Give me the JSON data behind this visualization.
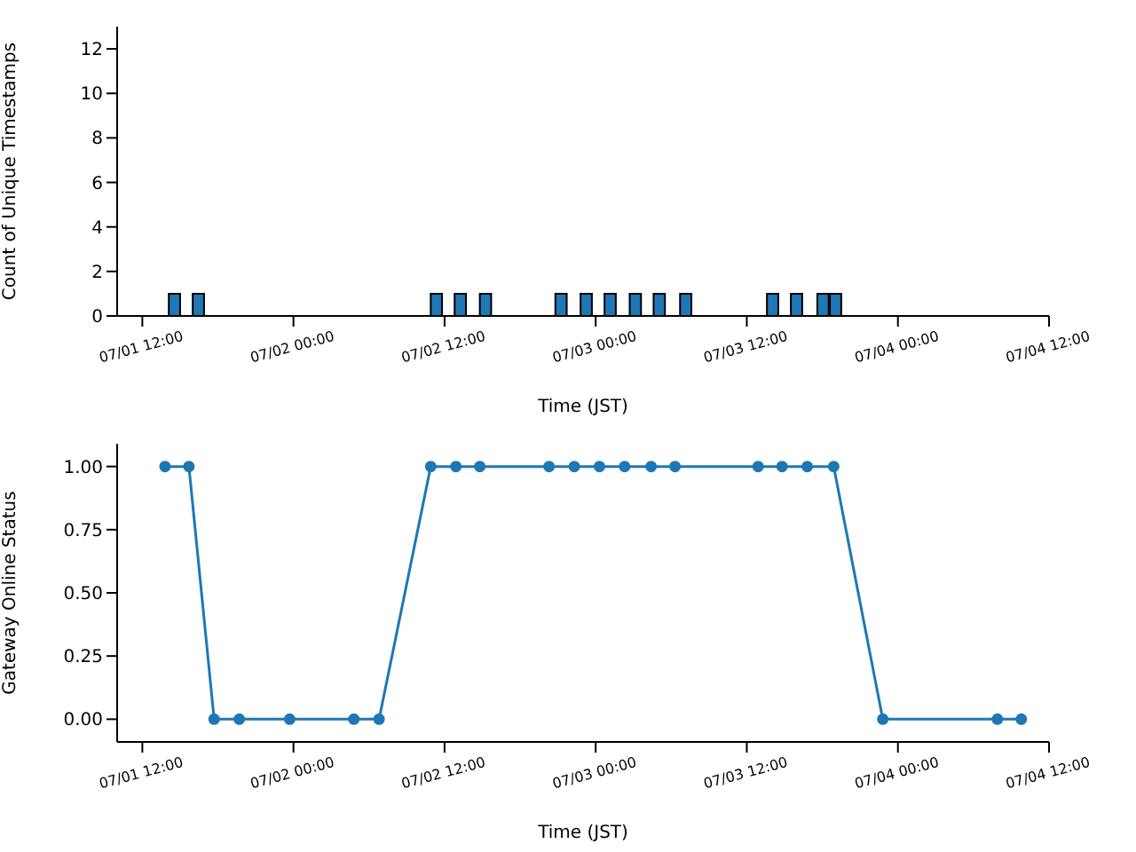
{
  "chart_data": [
    {
      "type": "bar",
      "xlabel": "Time (JST)",
      "ylabel": "Count of Unique Timestamps",
      "color": "#1f77b4",
      "x": [
        "--07-01T14:36",
        "--07-01T16:30",
        "--07-02T11:24",
        "--07-02T13:18",
        "--07-02T15:18",
        "--07-02T21:18",
        "--07-02T23:18",
        "--07-03T01:12",
        "--07-03T03:12",
        "--07-03T05:06",
        "--07-03T07:12",
        "--07-03T14:06",
        "--07-03T16:00",
        "--07-03T18:06",
        "--07-03T19:06"
      ],
      "values": [
        1,
        1,
        1,
        1,
        1,
        1,
        1,
        1,
        1,
        1,
        1,
        1,
        1,
        1,
        1
      ],
      "xlim": [
        "--07-01T10:00",
        "--07-04T12:00"
      ],
      "xticks": [
        {
          "value": "--07-01T12:00",
          "label": "07/01 12:00"
        },
        {
          "value": "--07-02T00:00",
          "label": "07/02 00:00"
        },
        {
          "value": "--07-02T12:00",
          "label": "07/02 12:00"
        },
        {
          "value": "--07-03T00:00",
          "label": "07/03 00:00"
        },
        {
          "value": "--07-03T12:00",
          "label": "07/03 12:00"
        },
        {
          "value": "--07-04T00:00",
          "label": "07/04 00:00"
        },
        {
          "value": "--07-04T12:00",
          "label": "07/04 12:00"
        }
      ],
      "ylim": [
        0,
        13
      ],
      "yticks": [
        0,
        2,
        4,
        6,
        8,
        10,
        12
      ]
    },
    {
      "type": "line",
      "xlabel": "Time (JST)",
      "ylabel": "Gateway Online Status",
      "color": "#1f77b4",
      "marker": "circle",
      "x": [
        "--07-01T13:48",
        "--07-01T15:42",
        "--07-01T17:42",
        "--07-01T19:42",
        "--07-01T23:42",
        "--07-02T04:48",
        "--07-02T06:48",
        "--07-02T10:54",
        "--07-02T12:54",
        "--07-02T14:48",
        "--07-02T20:18",
        "--07-02T22:18",
        "--07-03T00:18",
        "--07-03T02:18",
        "--07-03T04:24",
        "--07-03T06:18",
        "--07-03T12:54",
        "--07-03T14:48",
        "--07-03T16:48",
        "--07-03T18:54",
        "--07-03T22:48",
        "--07-04T07:54",
        "--07-04T09:48"
      ],
      "values": [
        1,
        1,
        0,
        0,
        0,
        0,
        0,
        1,
        1,
        1,
        1,
        1,
        1,
        1,
        1,
        1,
        1,
        1,
        1,
        1,
        0,
        0,
        0
      ],
      "xlim": [
        "--07-01T10:00",
        "--07-04T12:00"
      ],
      "xticks": [
        {
          "value": "--07-01T12:00",
          "label": "07/01 12:00"
        },
        {
          "value": "--07-02T00:00",
          "label": "07/02 00:00"
        },
        {
          "value": "--07-02T12:00",
          "label": "07/02 12:00"
        },
        {
          "value": "--07-03T00:00",
          "label": "07/03 00:00"
        },
        {
          "value": "--07-03T12:00",
          "label": "07/03 12:00"
        },
        {
          "value": "--07-04T00:00",
          "label": "07/04 00:00"
        },
        {
          "value": "--07-04T12:00",
          "label": "07/04 12:00"
        }
      ],
      "ylim": [
        -0.09,
        1.09
      ],
      "yticks": [
        {
          "value": 0,
          "label": "0.00"
        },
        {
          "value": 0.25,
          "label": "0.25"
        },
        {
          "value": 0.5,
          "label": "0.50"
        },
        {
          "value": 0.75,
          "label": "0.75"
        },
        {
          "value": 1,
          "label": "1.00"
        }
      ]
    }
  ]
}
